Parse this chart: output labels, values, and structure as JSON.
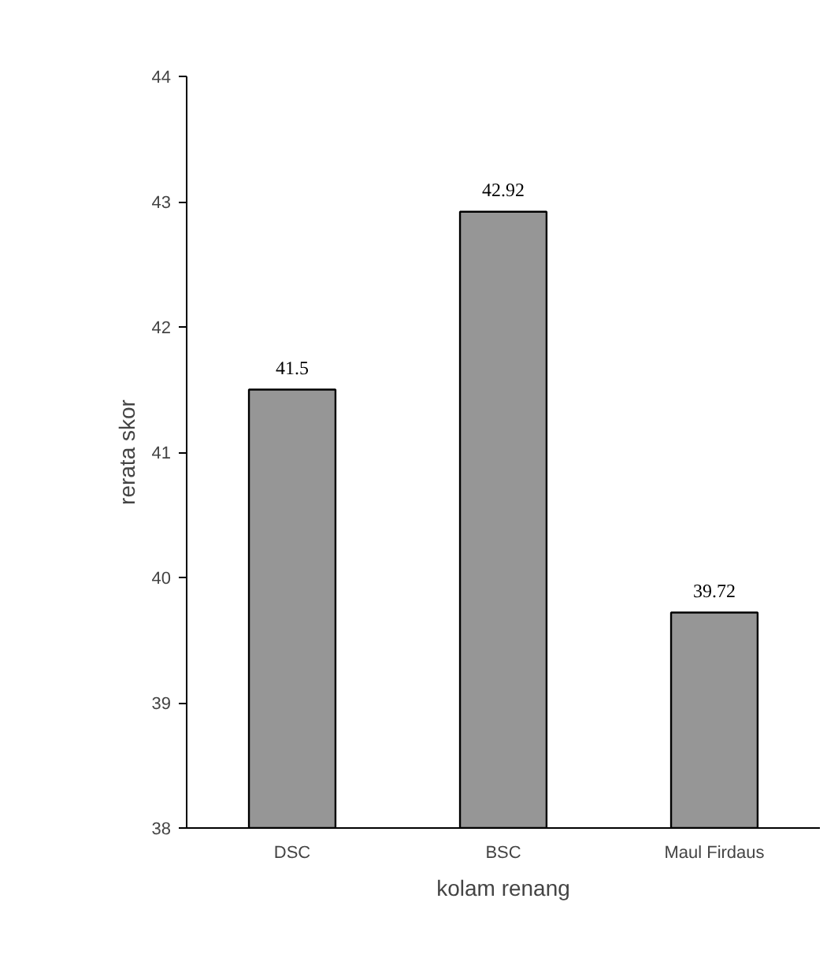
{
  "chart_data": {
    "type": "bar",
    "xlabel": "kolam renang",
    "ylabel": "rerata skor",
    "categories": [
      "DSC",
      "BSC",
      "Maul Firdaus"
    ],
    "values": [
      41.5,
      42.92,
      39.72
    ],
    "color": "#969696",
    "ylim": [
      38,
      44
    ],
    "yticks": [
      38,
      39,
      40,
      41,
      42,
      43,
      44
    ],
    "data_labels": true
  }
}
